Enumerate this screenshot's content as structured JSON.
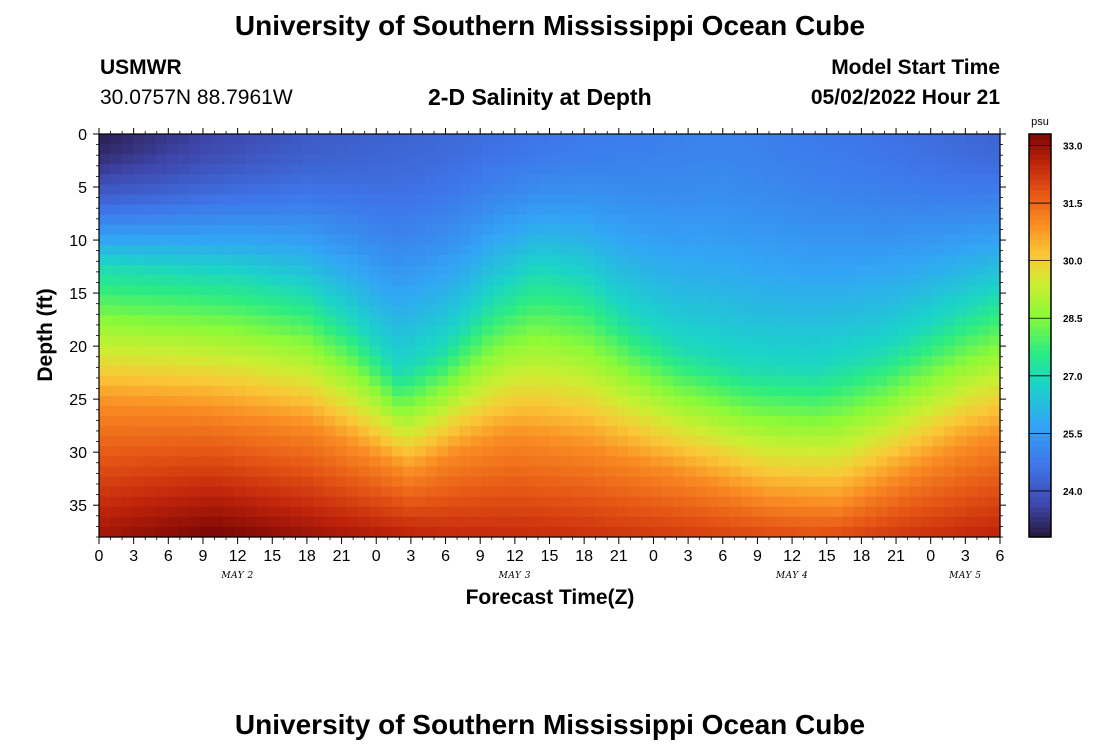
{
  "header": {
    "title": "University of Southern Mississippi Ocean Cube",
    "footer_title": "University of Southern Mississippi Ocean Cube",
    "station": "USMWR",
    "coords": "30.0757N  88.7961W",
    "subtitle": "2-D Salinity at Depth",
    "model_start_label": "Model Start Time",
    "model_start_value": "05/02/2022 Hour 21"
  },
  "chart_data": {
    "type": "heatmap",
    "title": "2-D Salinity at Depth",
    "xlabel": "Forecast Time(Z)",
    "ylabel": "Depth (ft)",
    "x_tick_labels": [
      "0",
      "3",
      "6",
      "9",
      "12",
      "15",
      "18",
      "21",
      "0",
      "3",
      "6",
      "9",
      "12",
      "15",
      "18",
      "21",
      "0",
      "3",
      "6",
      "9",
      "12",
      "15",
      "18",
      "21",
      "0",
      "3",
      "6"
    ],
    "day_labels": [
      {
        "label": "MAY 2",
        "hour": 12
      },
      {
        "label": "MAY 3",
        "hour": 36
      },
      {
        "label": "MAY 4",
        "hour": 60
      },
      {
        "label": "MAY 5",
        "hour": 75
      }
    ],
    "xlim_hours": [
      0,
      78
    ],
    "y_ticks": [
      0,
      5,
      10,
      15,
      20,
      25,
      30,
      35
    ],
    "ylim_ft": [
      0,
      38
    ],
    "colorbar": {
      "unit": "psu",
      "range": [
        22.8,
        33.3
      ],
      "tick_values": [
        24.0,
        25.5,
        27.0,
        28.5,
        30.0,
        31.5,
        33.0
      ],
      "tick_labels": [
        "24.0",
        "25.5",
        "27.0",
        "28.5",
        "30.0",
        "31.5",
        "33.0"
      ]
    },
    "surface_salinity_psu": [
      {
        "hour": 0,
        "value": 23.0
      },
      {
        "hour": 9,
        "value": 23.6
      },
      {
        "hour": 18,
        "value": 24.1
      },
      {
        "hour": 30,
        "value": 24.4
      },
      {
        "hour": 42,
        "value": 24.8
      },
      {
        "hour": 54,
        "value": 25.0
      },
      {
        "hour": 66,
        "value": 24.7
      },
      {
        "hour": 78,
        "value": 24.3
      }
    ],
    "isohaline_27psu_depth_ft": [
      {
        "hour": 0,
        "value": 12.5
      },
      {
        "hour": 6,
        "value": 13.0
      },
      {
        "hour": 12,
        "value": 13.5
      },
      {
        "hour": 18,
        "value": 15.0
      },
      {
        "hour": 22,
        "value": 18.0
      },
      {
        "hour": 26,
        "value": 22.5
      },
      {
        "hour": 30,
        "value": 20.0
      },
      {
        "hour": 34,
        "value": 15.5
      },
      {
        "hour": 38,
        "value": 13.0
      },
      {
        "hour": 42,
        "value": 14.0
      },
      {
        "hour": 46,
        "value": 17.5
      },
      {
        "hour": 50,
        "value": 20.0
      },
      {
        "hour": 56,
        "value": 22.0
      },
      {
        "hour": 62,
        "value": 22.5
      },
      {
        "hour": 68,
        "value": 20.5
      },
      {
        "hour": 74,
        "value": 17.0
      },
      {
        "hour": 78,
        "value": 15.0
      }
    ],
    "isohaline_31psu_depth_ft": [
      {
        "hour": 0,
        "value": 25.5
      },
      {
        "hour": 9,
        "value": 26.0
      },
      {
        "hour": 18,
        "value": 27.5
      },
      {
        "hour": 24,
        "value": 30.5
      },
      {
        "hour": 27,
        "value": 32.0
      },
      {
        "hour": 31,
        "value": 30.0
      },
      {
        "hour": 36,
        "value": 28.5
      },
      {
        "hour": 42,
        "value": 29.5
      },
      {
        "hour": 50,
        "value": 32.0
      },
      {
        "hour": 58,
        "value": 34.5
      },
      {
        "hour": 64,
        "value": 35.0
      },
      {
        "hour": 70,
        "value": 32.0
      },
      {
        "hour": 75,
        "value": 29.5
      },
      {
        "hour": 78,
        "value": 28.5
      }
    ],
    "bottom_salinity_psu": [
      {
        "hour": 0,
        "value": 32.9
      },
      {
        "hour": 10,
        "value": 33.4
      },
      {
        "hour": 20,
        "value": 32.9
      },
      {
        "hour": 30,
        "value": 32.5
      },
      {
        "hour": 40,
        "value": 32.4
      },
      {
        "hour": 50,
        "value": 32.2
      },
      {
        "hour": 62,
        "value": 31.9
      },
      {
        "hour": 70,
        "value": 32.3
      },
      {
        "hour": 78,
        "value": 32.6
      }
    ]
  }
}
